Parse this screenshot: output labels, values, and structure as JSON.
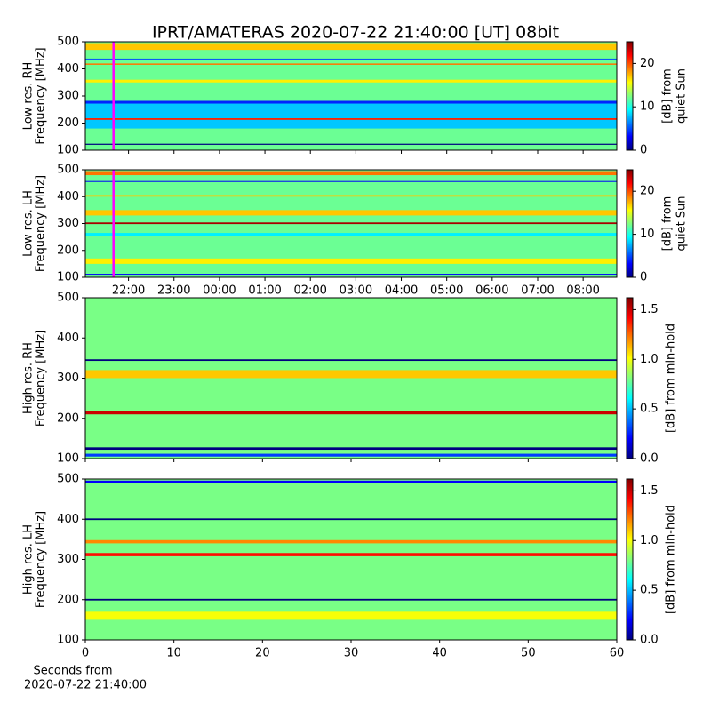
{
  "title": "IPRT/AMATERAS 2020-07-22 21:40:00 [UT]   08bit",
  "chart_data": [
    {
      "type": "heatmap",
      "ylabel": [
        "Low res. RH",
        "Frequency [MHz]"
      ],
      "xlim": [
        21.05,
        32.74
      ],
      "xticks": [
        22,
        23,
        24,
        25,
        26,
        27,
        28,
        29,
        30,
        31,
        32
      ],
      "ylim": [
        100,
        500
      ],
      "yticks": [
        100,
        200,
        300,
        400,
        500
      ],
      "marker": {
        "x": 21.67,
        "color": "#ff00ff"
      },
      "base": 12,
      "bands": [
        {
          "from": 180,
          "to": 280,
          "level": 8
        },
        {
          "from": 272,
          "to": 282,
          "level": 4
        },
        {
          "from": 120,
          "to": 124,
          "level": 0
        },
        {
          "from": 212,
          "to": 218,
          "level": 21
        },
        {
          "from": 470,
          "to": 495,
          "level": 17
        },
        {
          "from": 415,
          "to": 420,
          "level": 19
        },
        {
          "from": 350,
          "to": 360,
          "level": 16
        },
        {
          "from": 435,
          "to": 438,
          "level": 5
        }
      ],
      "colorbar": {
        "label": [
          "[dB] from",
          "quiet Sun"
        ],
        "lim": [
          0,
          25
        ],
        "ticks": [
          0,
          10,
          20
        ]
      }
    },
    {
      "type": "heatmap",
      "ylabel": [
        "Low res. LH",
        "Frequency [MHz]"
      ],
      "xlim": [
        21.05,
        32.74
      ],
      "xticks": [
        {
          "value": 22,
          "label": "22:00"
        },
        {
          "value": 23,
          "label": "23:00"
        },
        {
          "value": 24,
          "label": "00:00"
        },
        {
          "value": 25,
          "label": "01:00"
        },
        {
          "value": 26,
          "label": "02:00"
        },
        {
          "value": 27,
          "label": "03:00"
        },
        {
          "value": 28,
          "label": "04:00"
        },
        {
          "value": 29,
          "label": "05:00"
        },
        {
          "value": 30,
          "label": "06:00"
        },
        {
          "value": 31,
          "label": "07:00"
        },
        {
          "value": 32,
          "label": "08:00"
        }
      ],
      "ylim": [
        100,
        500
      ],
      "yticks": [
        100,
        200,
        300,
        400,
        500
      ],
      "marker": {
        "x": 21.67,
        "color": "#ff00ff"
      },
      "base": 12,
      "bands": [
        {
          "from": 298,
          "to": 304,
          "level": 24
        },
        {
          "from": 330,
          "to": 350,
          "level": 17
        },
        {
          "from": 150,
          "to": 170,
          "level": 16
        },
        {
          "from": 455,
          "to": 458,
          "level": 3
        },
        {
          "from": 480,
          "to": 495,
          "level": 19
        },
        {
          "from": 400,
          "to": 406,
          "level": 17
        },
        {
          "from": 255,
          "to": 265,
          "level": 9
        },
        {
          "from": 110,
          "to": 113,
          "level": 3
        }
      ],
      "colorbar": {
        "label": [
          "[dB] from",
          "quiet Sun"
        ],
        "lim": [
          0,
          25
        ],
        "ticks": [
          0,
          10,
          20
        ]
      }
    },
    {
      "type": "heatmap",
      "ylabel": [
        "High res. RH",
        "Frequency [MHz]"
      ],
      "xlim": [
        0,
        60
      ],
      "xticks": [
        0,
        10,
        20,
        30,
        40,
        50,
        60
      ],
      "ylim": [
        100,
        500
      ],
      "yticks": [
        100,
        200,
        300,
        400,
        500
      ],
      "base": 0.8,
      "bands": [
        {
          "from": 343,
          "to": 347,
          "level": 0
        },
        {
          "from": 210,
          "to": 218,
          "level": 1.5
        },
        {
          "from": 122,
          "to": 128,
          "level": 0
        },
        {
          "from": 300,
          "to": 320,
          "level": 1.1
        },
        {
          "from": 105,
          "to": 112,
          "level": 0.3
        }
      ],
      "colorbar": {
        "label": [
          "[dB] from min-hold"
        ],
        "lim": [
          0,
          1.62
        ],
        "ticks": [
          {
            "value": 0,
            "label": "0.0"
          },
          {
            "value": 0.5,
            "label": "0.5"
          },
          {
            "value": 1,
            "label": "1.0"
          },
          {
            "value": 1.5,
            "label": "1.5"
          }
        ]
      }
    },
    {
      "type": "heatmap",
      "ylabel": [
        "High res. LH",
        "Frequency [MHz]"
      ],
      "xlabel": [
        "Seconds from",
        "2020-07-22 21:40:00"
      ],
      "xlim": [
        0,
        60
      ],
      "xticks": [
        0,
        10,
        20,
        30,
        40,
        50,
        60
      ],
      "ylim": [
        100,
        500
      ],
      "yticks": [
        100,
        200,
        300,
        400,
        500
      ],
      "base": 0.8,
      "bands": [
        {
          "from": 398,
          "to": 402,
          "level": 0
        },
        {
          "from": 308,
          "to": 316,
          "level": 1.4
        },
        {
          "from": 198,
          "to": 202,
          "level": 0
        },
        {
          "from": 340,
          "to": 348,
          "level": 1.2
        },
        {
          "from": 490,
          "to": 496,
          "level": 0.2
        },
        {
          "from": 150,
          "to": 170,
          "level": 1.0
        }
      ],
      "colorbar": {
        "label": [
          "[dB] from min-hold"
        ],
        "lim": [
          0,
          1.62
        ],
        "ticks": [
          {
            "value": 0,
            "label": "0.0"
          },
          {
            "value": 0.5,
            "label": "0.5"
          },
          {
            "value": 1,
            "label": "1.0"
          },
          {
            "value": 1.5,
            "label": "1.5"
          }
        ]
      }
    }
  ]
}
